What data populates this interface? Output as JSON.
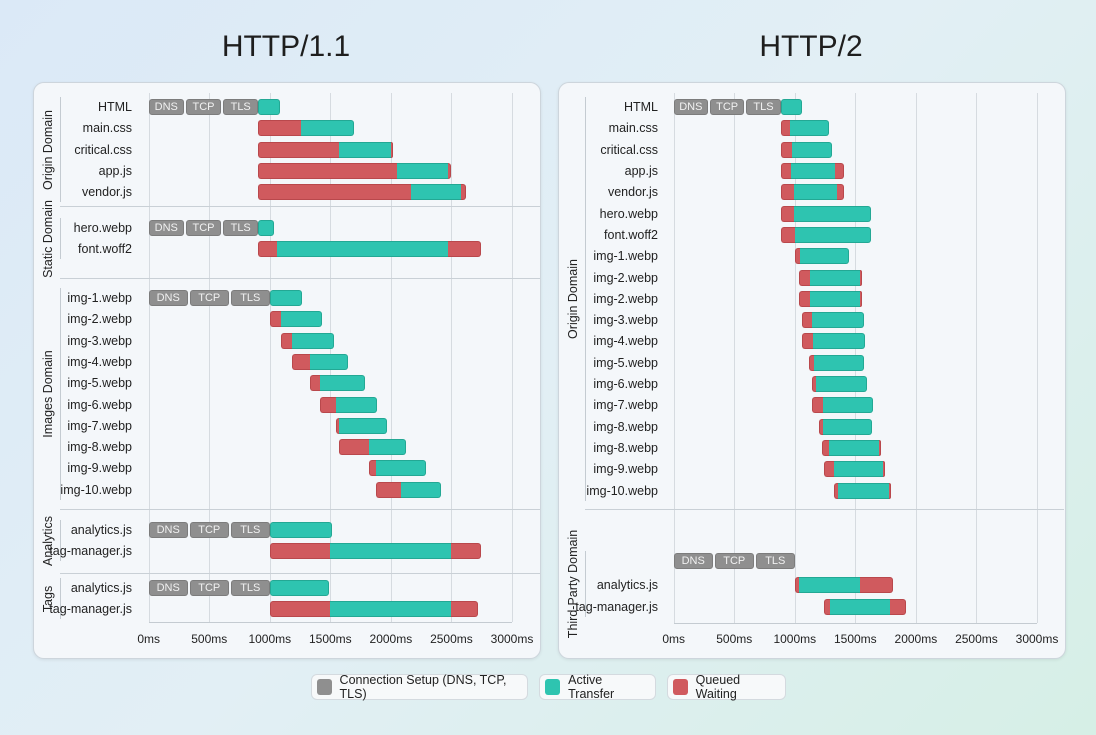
{
  "legend": [
    {
      "label": "Connection Setup (DNS, TCP, TLS)",
      "color": "#8f8f8f"
    },
    {
      "label": "Active Transfer",
      "color": "#2ec4b0"
    },
    {
      "label": "Queued Waiting",
      "color": "#d05a5e"
    }
  ],
  "chart_data": [
    {
      "type": "waterfall",
      "title": "HTTP/1.1",
      "x_ticks": [
        "0ms",
        "500ms",
        "1000ms",
        "1500ms",
        "2000ms",
        "2500ms",
        "3000ms"
      ],
      "xlim": [
        0,
        3000
      ],
      "conn_labels": [
        "DNS",
        "TCP",
        "TLS"
      ],
      "groups": [
        {
          "name": "Origin Domain",
          "rows": [
            {
              "label": "HTML",
              "conn": [
                0,
                905
              ],
              "segments": [
                [
                  "a",
                  905,
                  1087
                ]
              ]
            },
            {
              "label": "main.css",
              "segments": [
                [
                  "q",
                  905,
                  1260
                ],
                [
                  "a",
                  1260,
                  1693
                ]
              ]
            },
            {
              "label": "critical.css",
              "segments": [
                [
                  "q",
                  905,
                  1569
                ],
                [
                  "a",
                  1569,
                  2000
                ],
                [
                  "q",
                  2000,
                  2017
                ]
              ]
            },
            {
              "label": "app.js",
              "segments": [
                [
                  "q",
                  905,
                  2053
                ],
                [
                  "a",
                  2053,
                  2472
                ],
                [
                  "q",
                  2472,
                  2500
                ]
              ]
            },
            {
              "label": "vendor.js",
              "segments": [
                [
                  "q",
                  905,
                  2163
                ],
                [
                  "a",
                  2163,
                  2582
                ],
                [
                  "q",
                  2582,
                  2623
                ]
              ]
            }
          ]
        },
        {
          "name": "Static Domain",
          "rows": [
            {
              "label": "hero.webp",
              "conn": [
                0,
                905
              ],
              "segments": [
                [
                  "a",
                  905,
                  1035
                ]
              ]
            },
            {
              "label": "font.woff2",
              "segments": [
                [
                  "q",
                  905,
                  1062
                ],
                [
                  "a",
                  1062,
                  2472
                ],
                [
                  "q",
                  2472,
                  2747
                ]
              ]
            }
          ]
        },
        {
          "name": "Images Domain",
          "rows": [
            {
              "label": "img-1.webp",
              "conn": [
                0,
                1000
              ],
              "segments": [
                [
                  "a",
                  1000,
                  1263
                ]
              ]
            },
            {
              "label": "img-2.webp",
              "segments": [
                [
                  "q",
                  1000,
                  1090
                ],
                [
                  "a",
                  1090,
                  1434
                ]
              ]
            },
            {
              "label": "img-3.webp",
              "segments": [
                [
                  "q",
                  1090,
                  1186
                ],
                [
                  "a",
                  1186,
                  1530
                ]
              ]
            },
            {
              "label": "img-4.webp",
              "segments": [
                [
                  "q",
                  1186,
                  1335
                ],
                [
                  "a",
                  1335,
                  1648
                ]
              ]
            },
            {
              "label": "img-5.webp",
              "segments": [
                [
                  "q",
                  1335,
                  1417
                ],
                [
                  "a",
                  1417,
                  1789
                ]
              ]
            },
            {
              "label": "img-6.webp",
              "segments": [
                [
                  "q",
                  1417,
                  1549
                ],
                [
                  "a",
                  1549,
                  1888
                ]
              ]
            },
            {
              "label": "img-7.webp",
              "segments": [
                [
                  "q",
                  1549,
                  1572
                ],
                [
                  "a",
                  1572,
                  1968
                ]
              ]
            },
            {
              "label": "img-8.webp",
              "segments": [
                [
                  "q",
                  1568,
                  1820
                ],
                [
                  "a",
                  1820,
                  2128
                ]
              ]
            },
            {
              "label": "img-9.webp",
              "segments": [
                [
                  "q",
                  1820,
                  1880
                ],
                [
                  "a",
                  1880,
                  2293
                ]
              ]
            },
            {
              "label": "img-10.webp",
              "segments": [
                [
                  "q",
                  1880,
                  2081
                ],
                [
                  "a",
                  2081,
                  2417
                ]
              ]
            }
          ]
        },
        {
          "name": "Analytics",
          "rows": [
            {
              "label": "analytics.js",
              "conn": [
                0,
                1000
              ],
              "segments": [
                [
                  "a",
                  1000,
                  1516
                ]
              ]
            },
            {
              "label": "tag-manager.js",
              "segments": [
                [
                  "q",
                  1000,
                  1500
                ],
                [
                  "a",
                  1500,
                  2500
                ],
                [
                  "q",
                  2500,
                  2745
                ]
              ]
            }
          ]
        },
        {
          "name": "Tags",
          "rows": [
            {
              "label": "analytics.js",
              "conn": [
                0,
                1000
              ],
              "segments": [
                [
                  "a",
                  1000,
                  1490
                ]
              ]
            },
            {
              "label": "tag-manager.js",
              "segments": [
                [
                  "q",
                  1000,
                  1500
                ],
                [
                  "a",
                  1500,
                  2500
                ],
                [
                  "q",
                  2500,
                  2720
                ]
              ]
            }
          ]
        }
      ]
    },
    {
      "type": "waterfall",
      "title": "HTTP/2",
      "x_ticks": [
        "0ms",
        "500ms",
        "1000ms",
        "1500ms",
        "2000ms",
        "2500ms",
        "3000ms"
      ],
      "xlim": [
        0,
        3000
      ],
      "conn_labels": [
        "DNS",
        "TCP",
        "TLS"
      ],
      "groups": [
        {
          "name": "Origin Domain",
          "rows": [
            {
              "label": "HTML",
              "conn": [
                0,
                883
              ],
              "segments": [
                [
                  "a",
                  883,
                  1060
                ]
              ]
            },
            {
              "label": "main.css",
              "segments": [
                [
                  "q",
                  883,
                  958
                ],
                [
                  "a",
                  958,
                  1283
                ]
              ]
            },
            {
              "label": "critical.css",
              "segments": [
                [
                  "q",
                  883,
                  980
                ],
                [
                  "a",
                  980,
                  1310
                ]
              ]
            },
            {
              "label": "app.js",
              "segments": [
                [
                  "q",
                  883,
                  972
                ],
                [
                  "a",
                  972,
                  1329
                ],
                [
                  "q",
                  1329,
                  1404
                ]
              ]
            },
            {
              "label": "vendor.js",
              "segments": [
                [
                  "q",
                  883,
                  994
                ],
                [
                  "a",
                  994,
                  1351
                ],
                [
                  "q",
                  1351,
                  1409
                ]
              ]
            },
            {
              "label": "hero.webp",
              "segments": [
                [
                  "q",
                  883,
                  994
                ],
                [
                  "a",
                  994,
                  1632
                ]
              ]
            },
            {
              "label": "font.woff2",
              "segments": [
                [
                  "q",
                  883,
                  999
                ],
                [
                  "a",
                  999,
                  1632
                ]
              ]
            },
            {
              "label": "img-1.webp",
              "segments": [
                [
                  "q",
                  999,
                  1040
                ],
                [
                  "a",
                  1040,
                  1445
                ]
              ]
            },
            {
              "label": "img-2.webp",
              "segments": [
                [
                  "q",
                  1032,
                  1123
                ],
                [
                  "a",
                  1123,
                  1536
                ],
                [
                  "q",
                  1536,
                  1547
                ]
              ]
            },
            {
              "label": "img-2.webp",
              "segments": [
                [
                  "q",
                  1032,
                  1123
                ],
                [
                  "a",
                  1123,
                  1536
                ],
                [
                  "q",
                  1536,
                  1547
                ]
              ]
            },
            {
              "label": "img-3.webp",
              "segments": [
                [
                  "q",
                  1062,
                  1142
                ],
                [
                  "a",
                  1142,
                  1569
                ]
              ]
            },
            {
              "label": "img-4.webp",
              "segments": [
                [
                  "q",
                  1062,
                  1151
                ],
                [
                  "a",
                  1151,
                  1577
                ]
              ]
            },
            {
              "label": "img-5.webp",
              "segments": [
                [
                  "q",
                  1115,
                  1159
                ],
                [
                  "a",
                  1159,
                  1572
                ]
              ]
            },
            {
              "label": "img-6.webp",
              "segments": [
                [
                  "q",
                  1145,
                  1178
                ],
                [
                  "a",
                  1178,
                  1594
                ]
              ]
            },
            {
              "label": "img-7.webp",
              "segments": [
                [
                  "q",
                  1145,
                  1233
                ],
                [
                  "a",
                  1233,
                  1646
                ]
              ]
            },
            {
              "label": "img-8.webp",
              "segments": [
                [
                  "q",
                  1203,
                  1233
                ],
                [
                  "a",
                  1233,
                  1638
                ]
              ]
            },
            {
              "label": "img-8.webp",
              "segments": [
                [
                  "q",
                  1222,
                  1280
                ],
                [
                  "a",
                  1280,
                  1693
                ],
                [
                  "q",
                  1693,
                  1712
                ]
              ]
            },
            {
              "label": "img-9.webp",
              "segments": [
                [
                  "q",
                  1244,
                  1321
                ],
                [
                  "a",
                  1321,
                  1729
                ],
                [
                  "q",
                  1729,
                  1742
                ]
              ]
            },
            {
              "label": "img-10.webp",
              "segments": [
                [
                  "q",
                  1327,
                  1360
                ],
                [
                  "a",
                  1360,
                  1775
                ],
                [
                  "q",
                  1775,
                  1792
                ]
              ]
            }
          ]
        },
        {
          "name": "Third-Party Domain",
          "rows": [
            {
              "label": "",
              "conn": [
                0,
                1000
              ],
              "segments": []
            },
            {
              "label": "analytics.js",
              "segments": [
                [
                  "q",
                  1002,
                  1032
                ],
                [
                  "a",
                  1032,
                  1536
                ],
                [
                  "q",
                  1536,
                  1808
                ]
              ]
            },
            {
              "label": "tag-manager.js",
              "segments": [
                [
                  "q",
                  1244,
                  1288
                ],
                [
                  "a",
                  1288,
                  1786
                ],
                [
                  "q",
                  1786,
                  1921
                ]
              ]
            }
          ]
        }
      ]
    }
  ]
}
